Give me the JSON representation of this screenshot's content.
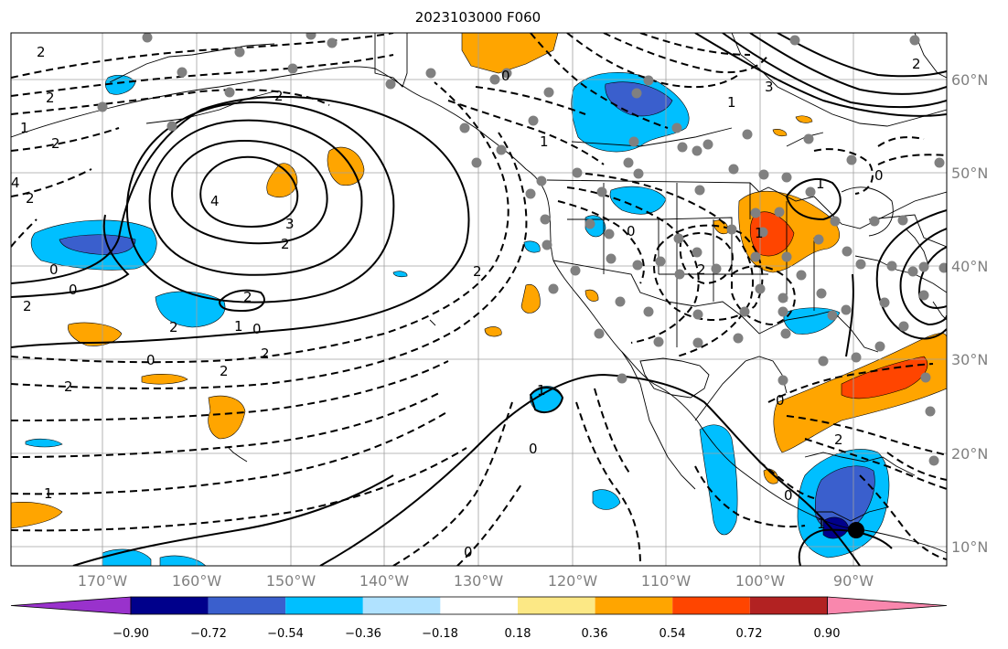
{
  "title": "2023103000 F060",
  "longitude_labels": [
    "170°W",
    "160°W",
    "150°W",
    "140°W",
    "130°W",
    "120°W",
    "110°W",
    "100°W",
    "90°W"
  ],
  "latitude_labels": [
    "60°N",
    "50°N",
    "40°N",
    "30°N",
    "20°N",
    "10°N"
  ],
  "colorbar": {
    "tick_labels": [
      "−0.90",
      "−0.72",
      "−0.54",
      "−0.36",
      "−0.18",
      "0.18",
      "0.36",
      "0.54",
      "0.72",
      "0.90"
    ],
    "colors": [
      "#9932cc",
      "#00008b",
      "#3a5fcd",
      "#00bfff",
      "#b0e2ff",
      "#ffffff",
      "#fce885",
      "#ffa500",
      "#ff4500",
      "#b22222",
      "#f987ad"
    ]
  },
  "contour_labels": [
    "2",
    "2",
    "2",
    "1",
    "2",
    "4",
    "2",
    "4",
    "3",
    "2",
    "0",
    "2",
    "1",
    "0",
    "2",
    "0",
    "2",
    "2",
    "2",
    "0",
    "1",
    "0",
    "2",
    "0",
    "2",
    "1",
    "0",
    "3",
    "1",
    "0",
    "1",
    "2",
    "1",
    "0",
    "2",
    "0",
    "2",
    "1",
    "0",
    "1"
  ],
  "colors": {
    "gridline": "#a0a0a0",
    "coastline": "#000000",
    "station_dot": "#808080"
  }
}
